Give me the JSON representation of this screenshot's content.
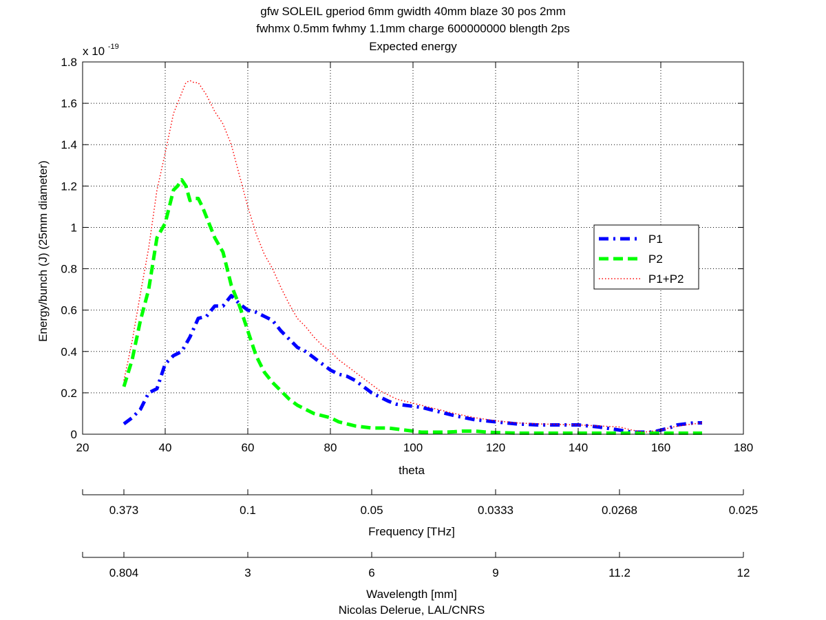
{
  "chart_data": {
    "type": "line",
    "title_lines": [
      "gfw SOLEIL gperiod 6mm gwidth 40mm blaze 30 pos 2mm",
      "fwhmx 0.5mm fwhmy 1.1mm charge 600000000 blength 2ps",
      "Expected energy"
    ],
    "xlabel": "theta",
    "ylabel": "Energy/bunch (J) (25mm diameter)",
    "y_multiplier": "x 10",
    "y_multiplier_exp": "-19",
    "xlim": [
      20,
      180
    ],
    "ylim": [
      0,
      1.8
    ],
    "x_ticks": [
      20,
      40,
      60,
      80,
      100,
      120,
      140,
      160,
      180
    ],
    "y_ticks": [
      0,
      0.2,
      0.4,
      0.6,
      0.8,
      1,
      1.2,
      1.4,
      1.6,
      1.8
    ],
    "grid": true,
    "legend_position": "right",
    "series": [
      {
        "name": "P1",
        "color": "#0000ff",
        "style": "dashdot",
        "x": [
          30,
          32,
          34,
          36,
          38,
          40,
          42,
          44,
          46,
          48,
          50,
          52,
          54,
          56,
          58,
          60,
          62,
          64,
          66,
          68,
          70,
          72,
          74,
          76,
          78,
          80,
          82,
          84,
          86,
          88,
          90,
          92,
          94,
          96,
          98,
          100,
          102,
          104,
          106,
          108,
          110,
          115,
          120,
          125,
          130,
          135,
          140,
          145,
          150,
          153,
          156,
          158,
          160,
          162,
          164,
          166,
          168,
          170
        ],
        "y": [
          0.05,
          0.08,
          0.12,
          0.2,
          0.22,
          0.34,
          0.38,
          0.4,
          0.47,
          0.56,
          0.57,
          0.62,
          0.62,
          0.67,
          0.63,
          0.6,
          0.59,
          0.57,
          0.55,
          0.5,
          0.46,
          0.42,
          0.4,
          0.37,
          0.34,
          0.31,
          0.29,
          0.28,
          0.26,
          0.23,
          0.2,
          0.18,
          0.16,
          0.145,
          0.14,
          0.135,
          0.13,
          0.12,
          0.11,
          0.1,
          0.09,
          0.07,
          0.06,
          0.05,
          0.045,
          0.045,
          0.045,
          0.035,
          0.02,
          0.01,
          0.01,
          0.01,
          0.02,
          0.03,
          0.045,
          0.05,
          0.055,
          0.055
        ]
      },
      {
        "name": "P2",
        "color": "#00ff00",
        "style": "dashed",
        "x": [
          30,
          32,
          34,
          36,
          38,
          40,
          42,
          43,
          44,
          45,
          46,
          47,
          48,
          49,
          50,
          52,
          54,
          56,
          58,
          60,
          62,
          64,
          66,
          68,
          70,
          72,
          74,
          76,
          78,
          80,
          82,
          84,
          86,
          88,
          90,
          92,
          94,
          96,
          98,
          100,
          102,
          104,
          106,
          108,
          110,
          112,
          115,
          118,
          120,
          125,
          130,
          140,
          150,
          160,
          170
        ],
        "y": [
          0.23,
          0.36,
          0.55,
          0.7,
          0.95,
          1.02,
          1.18,
          1.2,
          1.23,
          1.2,
          1.13,
          1.14,
          1.14,
          1.1,
          1.05,
          0.95,
          0.88,
          0.72,
          0.62,
          0.5,
          0.38,
          0.3,
          0.25,
          0.21,
          0.17,
          0.14,
          0.12,
          0.1,
          0.09,
          0.08,
          0.06,
          0.05,
          0.04,
          0.035,
          0.03,
          0.03,
          0.03,
          0.025,
          0.02,
          0.015,
          0.01,
          0.01,
          0.01,
          0.01,
          0.012,
          0.015,
          0.015,
          0.01,
          0.008,
          0.005,
          0.005,
          0.005,
          0.005,
          0.005,
          0.005
        ]
      },
      {
        "name": "P1+P2",
        "color": "#ff0000",
        "style": "dotted",
        "x": [
          30,
          32,
          34,
          36,
          38,
          40,
          42,
          44,
          45,
          46,
          47,
          48,
          49,
          50,
          52,
          54,
          56,
          58,
          60,
          62,
          64,
          66,
          68,
          70,
          72,
          74,
          76,
          78,
          80,
          82,
          84,
          86,
          88,
          90,
          92,
          94,
          96,
          98,
          100,
          102,
          105,
          110,
          115,
          120,
          125,
          130,
          140,
          150,
          153,
          156,
          158,
          160,
          163,
          166,
          170
        ],
        "y": [
          0.26,
          0.45,
          0.68,
          0.9,
          1.18,
          1.36,
          1.55,
          1.65,
          1.7,
          1.71,
          1.7,
          1.7,
          1.67,
          1.64,
          1.56,
          1.5,
          1.4,
          1.25,
          1.1,
          0.97,
          0.87,
          0.8,
          0.71,
          0.63,
          0.56,
          0.52,
          0.47,
          0.43,
          0.4,
          0.36,
          0.33,
          0.3,
          0.27,
          0.24,
          0.21,
          0.19,
          0.17,
          0.16,
          0.15,
          0.14,
          0.125,
          0.1,
          0.08,
          0.065,
          0.055,
          0.05,
          0.045,
          0.035,
          0.02,
          0.01,
          0.015,
          0.02,
          0.035,
          0.045,
          0.055
        ]
      }
    ],
    "secondary_axes": [
      {
        "xlabel": "Frequency [THz]",
        "tick_labels": [
          "0.373",
          "0.1",
          "0.05",
          "0.0333",
          "0.0268",
          "0.025"
        ],
        "tick_theta": [
          30,
          60,
          90,
          120,
          150,
          180
        ]
      },
      {
        "xlabel": "Wavelength [mm]",
        "tick_labels": [
          "0.804",
          "3",
          "6",
          "9",
          "11.2",
          "12"
        ],
        "tick_theta": [
          30,
          60,
          90,
          120,
          150,
          180
        ]
      }
    ],
    "footer": "Nicolas Delerue, LAL/CNRS"
  }
}
